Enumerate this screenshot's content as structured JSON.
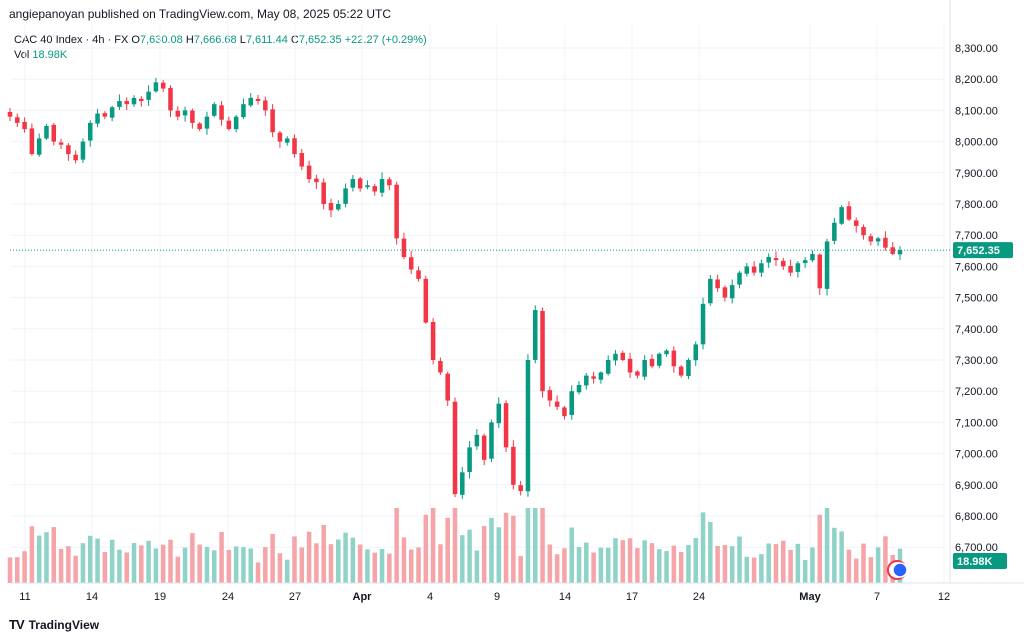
{
  "publisher": "angiepanoyan published on TradingView.com, May 08, 2025 05:22 UTC",
  "legend": {
    "symbol": "CAC 40 Index · 4h · FX",
    "open_label": "O",
    "open": "7,630.08",
    "high_label": "H",
    "high": "7,666.68",
    "low_label": "L",
    "low": "7,611.44",
    "close_label": "C",
    "close": "7,652.35",
    "change": "+22.27 (+0.29%)",
    "vol_label": "Vol",
    "vol": "18.98K"
  },
  "brand": "TradingView",
  "colors": {
    "up": "#089981",
    "down": "#f23645",
    "up_vol": "#8fd3c8",
    "down_vol": "#f5a5a8",
    "grid": "#f0f3fa"
  },
  "chart_data": {
    "type": "candlestick",
    "symbol": "CAC 40 Index",
    "interval": "4h",
    "y_ticks": [
      "8,300.00",
      "8,200.00",
      "8,100.00",
      "8,000.00",
      "7,900.00",
      "7,800.00",
      "7,700.00",
      "7,600.00",
      "7,500.00",
      "7,400.00",
      "7,300.00",
      "7,200.00",
      "7,100.00",
      "7,000.00",
      "6,900.00",
      "6,800.00",
      "6,700.00"
    ],
    "ylim": [
      6680,
      8340
    ],
    "x_ticks": [
      "11",
      "14",
      "19",
      "24",
      "27",
      "Apr",
      "4",
      "9",
      "14",
      "17",
      "24",
      "May",
      "7",
      "12"
    ],
    "last_price_label": "7,652.35",
    "last_price": 7652.35,
    "last_volume_label": "18.98K",
    "grid": true,
    "close_path": [
      8080,
      8060,
      8040,
      7960,
      8010,
      8050,
      8000,
      7990,
      7960,
      7940,
      8000,
      8060,
      8090,
      8080,
      8110,
      8130,
      8120,
      8140,
      8130,
      8160,
      8190,
      8170,
      8100,
      8080,
      8100,
      8060,
      8040,
      8080,
      8120,
      8070,
      8040,
      8080,
      8120,
      8140,
      8130,
      8100,
      8030,
      8000,
      8010,
      7960,
      7920,
      7880,
      7870,
      7800,
      7780,
      7800,
      7850,
      7880,
      7850,
      7860,
      7840,
      7880,
      7860,
      7690,
      7630,
      7590,
      7560,
      7420,
      7300,
      7260,
      7170,
      6870,
      6940,
      7020,
      7060,
      6980,
      7100,
      7160,
      7020,
      6900,
      6880,
      7300,
      7460,
      7200,
      7170,
      7150,
      7120,
      7200,
      7220,
      7250,
      7240,
      7260,
      7300,
      7320,
      7300,
      7260,
      7250,
      7300,
      7280,
      7320,
      7330,
      7280,
      7250,
      7300,
      7350,
      7480,
      7560,
      7530,
      7500,
      7540,
      7580,
      7600,
      7580,
      7610,
      7630,
      7620,
      7600,
      7580,
      7610,
      7620,
      7640,
      7530,
      7680,
      7740,
      7790,
      7750,
      7730,
      7700,
      7680,
      7690,
      7660,
      7640,
      7652
    ]
  }
}
